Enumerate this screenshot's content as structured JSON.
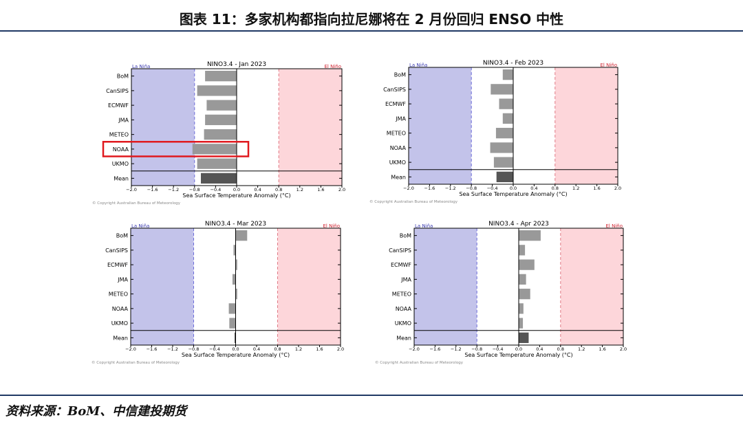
{
  "page": {
    "title": "图表 11：多家机构都指向拉尼娜将在 2 月份回归 ENSO 中性",
    "source": "资料来源：BoM、中信建投期货"
  },
  "colors": {
    "la_nina_fill": "#c3c3ea",
    "el_nino_fill": "#fdd6da",
    "la_nina_text": "#3b3bb0",
    "el_nino_text": "#d0202e",
    "bar": "#999999",
    "mean_bar": "#555555",
    "highlight": "#e0191e",
    "rule": "#1f3864"
  },
  "chart_data": [
    {
      "type": "bar",
      "orientation": "horizontal",
      "title": "NINO3.4 - Jan 2023",
      "xlabel": "Sea Surface Temperature Anomaly (°C)",
      "xlim": [
        -2.0,
        2.0
      ],
      "xticks": [
        "-2.0",
        "-1.6",
        "-1.2",
        "-0.8",
        "-0.4",
        "0.0",
        "0.4",
        "0.8",
        "1.2",
        "1.6",
        "2.0"
      ],
      "thresholds": [
        -0.8,
        0.8
      ],
      "left_label": "La Niña",
      "right_label": "El Niño",
      "copyright": "© Copyright Australian Bureau of Meteorology",
      "categories": [
        "BoM",
        "CanSIPS",
        "ECMWF",
        "JMA",
        "METEO",
        "NOAA",
        "UKMO",
        "Mean"
      ],
      "values": [
        -0.6,
        -0.75,
        -0.57,
        -0.6,
        -0.62,
        -0.84,
        -0.75,
        -0.68
      ],
      "highlight_category": "NOAA"
    },
    {
      "type": "bar",
      "orientation": "horizontal",
      "title": "NINO3.4 - Feb 2023",
      "xlabel": "Sea Surface Temperature Anomaly (°C)",
      "xlim": [
        -2.0,
        2.0
      ],
      "xticks": [
        "-2.0",
        "-1.6",
        "-1.2",
        "-0.8",
        "-0.4",
        "0.0",
        "0.4",
        "0.8",
        "1.2",
        "1.6",
        "2.0"
      ],
      "thresholds": [
        -0.8,
        0.8
      ],
      "left_label": "La Niña",
      "right_label": "El Niño",
      "copyright": "© Copyright Australian Bureau of Meteorology",
      "categories": [
        "BoM",
        "CanSIPS",
        "ECMWF",
        "JMA",
        "METEO",
        "NOAA",
        "UKMO",
        "Mean"
      ],
      "values": [
        -0.2,
        -0.43,
        -0.27,
        -0.2,
        -0.33,
        -0.44,
        -0.37,
        -0.32
      ]
    },
    {
      "type": "bar",
      "orientation": "horizontal",
      "title": "NINO3.4 - Mar 2023",
      "xlabel": "Sea Surface Temperature Anomaly (°C)",
      "xlim": [
        -2.0,
        2.0
      ],
      "xticks": [
        "-2.0",
        "-1.6",
        "-1.2",
        "-0.8",
        "-0.4",
        "0.0",
        "0.4",
        "0.8",
        "1.2",
        "1.6",
        "2.0"
      ],
      "thresholds": [
        -0.8,
        0.8
      ],
      "left_label": "La Niña",
      "right_label": "El Niño",
      "copyright": "© Copyright Australian Bureau of Meteorology",
      "categories": [
        "BoM",
        "CanSIPS",
        "ECMWF",
        "JMA",
        "METEO",
        "NOAA",
        "UKMO",
        "Mean"
      ],
      "values": [
        0.22,
        -0.04,
        0.03,
        -0.06,
        0.03,
        -0.13,
        -0.12,
        -0.02
      ]
    },
    {
      "type": "bar",
      "orientation": "horizontal",
      "title": "NINO3.4 - Apr 2023",
      "xlabel": "Sea Surface Temperature Anomaly (°C)",
      "xlim": [
        -2.0,
        2.0
      ],
      "xticks": [
        "-2.0",
        "-1.6",
        "-1.2",
        "-0.8",
        "-0.4",
        "0.0",
        "0.4",
        "0.8",
        "1.2",
        "1.6",
        "2.0"
      ],
      "thresholds": [
        -0.8,
        0.8
      ],
      "left_label": "La Niña",
      "right_label": "El Niño",
      "copyright": "© Copyright Australian Bureau of Meteorology",
      "categories": [
        "BoM",
        "CanSIPS",
        "ECMWF",
        "JMA",
        "METEO",
        "NOAA",
        "UKMO",
        "Mean"
      ],
      "values": [
        0.42,
        0.12,
        0.3,
        0.14,
        0.22,
        0.09,
        0.08,
        0.19
      ]
    }
  ]
}
